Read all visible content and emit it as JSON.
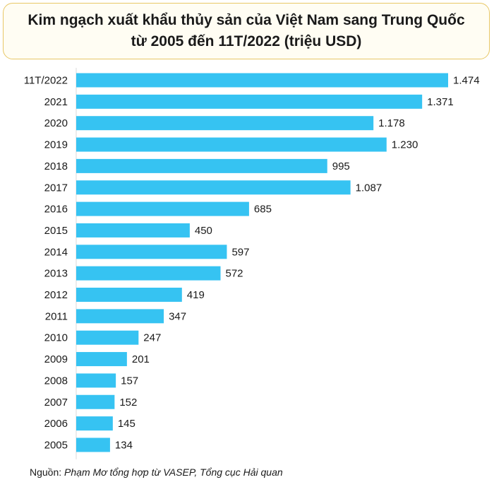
{
  "chart_data": {
    "type": "bar",
    "orientation": "horizontal",
    "title_line1": "Kim ngạch xuất khẩu thủy sản của Việt Nam sang Trung Quốc",
    "title_line2": "từ 2005 đến 11T/2022 (triệu USD)",
    "categories": [
      "11T/2022",
      "2021",
      "2020",
      "2019",
      "2018",
      "2017",
      "2016",
      "2015",
      "2014",
      "2013",
      "2012",
      "2011",
      "2010",
      "2009",
      "2008",
      "2007",
      "2006",
      "2005"
    ],
    "values": [
      1474,
      1371,
      1178,
      1230,
      995,
      1087,
      685,
      450,
      597,
      572,
      419,
      347,
      247,
      201,
      157,
      152,
      145,
      134
    ],
    "value_labels": [
      "1.474",
      "1.371",
      "1.178",
      "1.230",
      "995",
      "1.087",
      "685",
      "450",
      "597",
      "572",
      "419",
      "347",
      "247",
      "201",
      "157",
      "152",
      "145",
      "134"
    ],
    "xlim": [
      0,
      1474
    ],
    "bar_color": "#36c3f2",
    "grid": false,
    "legend": "none"
  },
  "source": {
    "label": "Nguồn: ",
    "text": "Phạm Mơ tổng hợp từ VASEP, Tổng cục Hải quan"
  }
}
